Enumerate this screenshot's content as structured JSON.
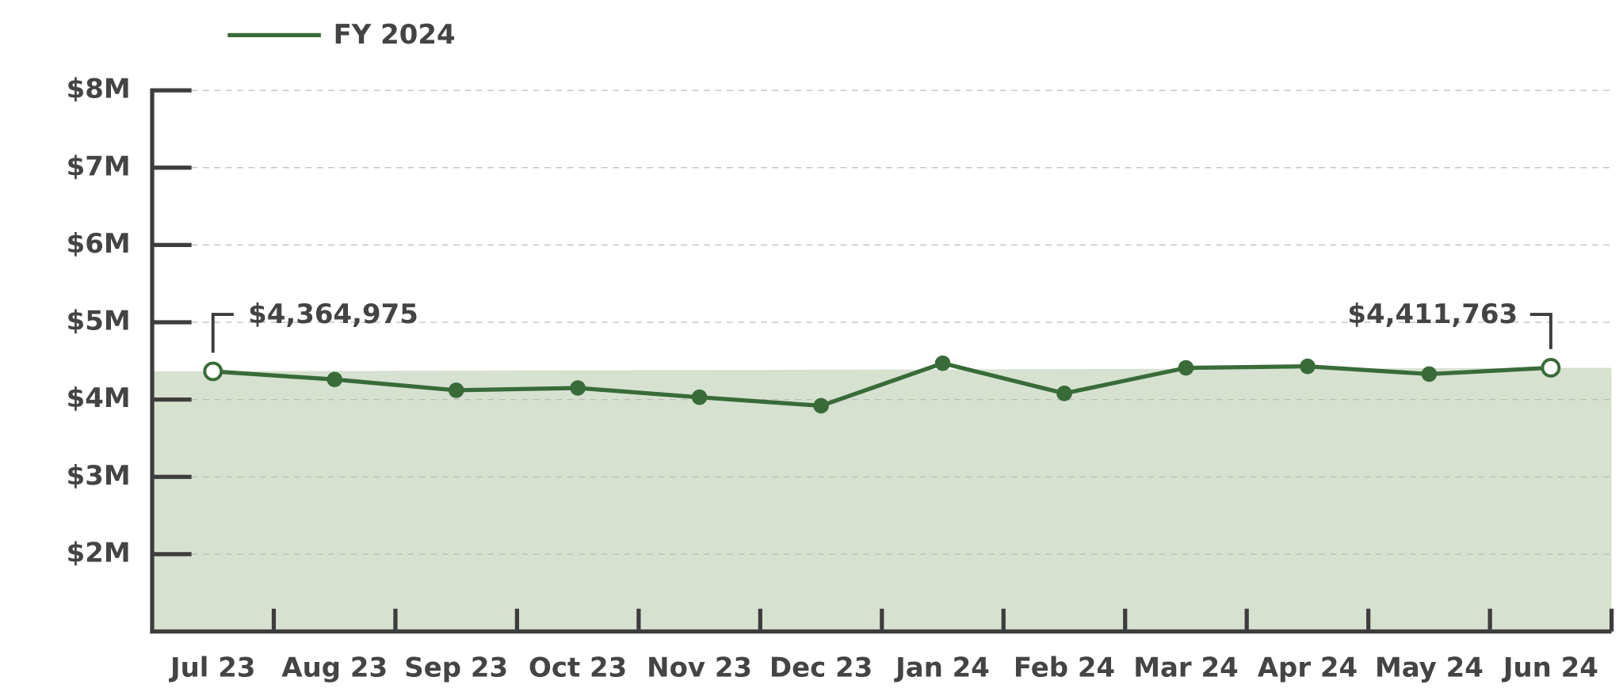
{
  "chart_data": {
    "type": "line",
    "categories": [
      "Jul 23",
      "Aug 23",
      "Sep 23",
      "Oct 23",
      "Nov 23",
      "Dec 23",
      "Jan 24",
      "Feb 24",
      "Mar 24",
      "Apr 24",
      "May 24",
      "Jun 24"
    ],
    "series": [
      {
        "name": "FY 2024",
        "color": "#386b38",
        "values": [
          4364975,
          4260000,
          4120000,
          4150000,
          4030000,
          3920000,
          4470000,
          4080000,
          4410000,
          4430000,
          4330000,
          4411763
        ],
        "value_labels": [
          "$4,364,975",
          null,
          null,
          null,
          null,
          null,
          null,
          null,
          null,
          null,
          null,
          "$4,411,763"
        ]
      }
    ],
    "area_color": "#d6e1d0",
    "ylim": [
      1000000,
      8000000
    ],
    "yticks": [
      {
        "value": 2000000,
        "label": "$2M"
      },
      {
        "value": 3000000,
        "label": "$3M"
      },
      {
        "value": 4000000,
        "label": "$4M"
      },
      {
        "value": 5000000,
        "label": "$5M"
      },
      {
        "value": 6000000,
        "label": "$6M"
      },
      {
        "value": 7000000,
        "label": "$7M"
      },
      {
        "value": 8000000,
        "label": "$8M"
      }
    ],
    "grid": true
  }
}
